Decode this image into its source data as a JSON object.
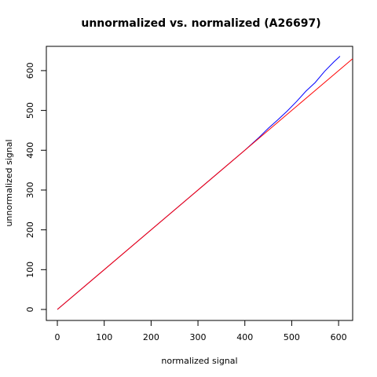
{
  "chart_data": {
    "type": "line",
    "title": "unnormalized vs. normalized (A26697)",
    "x_label": "normalized signal",
    "y_label": "unnormalized signal",
    "xlim": [
      -23.5,
      630
    ],
    "ylim": [
      -27.6,
      661
    ],
    "xticks": [
      0,
      100,
      200,
      300,
      400,
      500,
      600
    ],
    "yticks": [
      0,
      100,
      200,
      300,
      400,
      500,
      600
    ],
    "series": [
      {
        "color": "#0000ff",
        "x": [
          0,
          100,
          200,
          300,
          400,
          430,
          450,
          470,
          490,
          510,
          530,
          550,
          570,
          590,
          603
        ],
        "values": [
          0,
          100,
          200,
          300,
          400,
          432,
          455,
          476,
          498,
          522,
          548,
          570,
          598,
          622,
          636
        ]
      },
      {
        "color": "#ff0000",
        "x": [
          0,
          630
        ],
        "values": [
          0,
          630
        ]
      }
    ]
  }
}
